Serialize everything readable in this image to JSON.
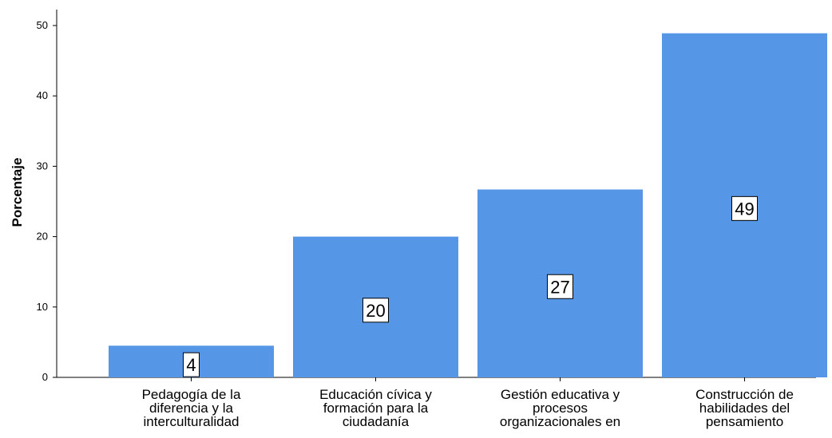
{
  "chart_data": {
    "type": "bar",
    "categories": [
      [
        "Pedagogía de la",
        "diferencia y la",
        "interculturalidad"
      ],
      [
        "Educación cívica y",
        "formación para la",
        "ciudadanía"
      ],
      [
        "Gestión educativa y",
        "procesos",
        "organizacionales en"
      ],
      [
        "Construcción de",
        "habilidades del",
        "pensamiento"
      ]
    ],
    "values": [
      4.5,
      20,
      26.7,
      48.9
    ],
    "data_labels": [
      "4",
      "20",
      "27",
      "49"
    ],
    "xlabel": "",
    "ylabel": "Porcentaje",
    "ylim": [
      0,
      50
    ],
    "yticks": [
      "0",
      "10",
      "20",
      "30",
      "40",
      "50"
    ],
    "grid": false,
    "bar_color": "#5596e6",
    "label_box_fill": "#ffffff",
    "label_box_stroke": "#000000"
  }
}
